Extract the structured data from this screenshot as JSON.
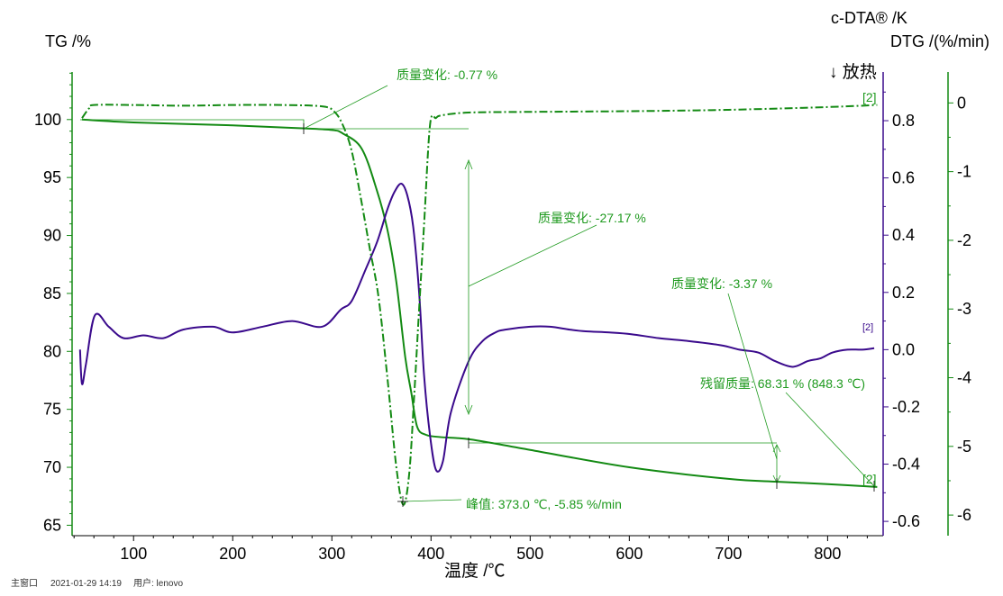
{
  "chart_data": {
    "type": "line",
    "title": "",
    "xlabel": "温度 /℃",
    "xlim": [
      38,
      856
    ],
    "xticks": [
      100,
      200,
      300,
      400,
      500,
      600,
      700,
      800
    ],
    "axes": {
      "tg": {
        "label": "TG /%",
        "ylim": [
          64.1,
          104.1
        ],
        "ticks": [
          65,
          70,
          75,
          80,
          85,
          90,
          95,
          100
        ],
        "color": "#138a13"
      },
      "dta": {
        "label": "c-DTA® /K",
        "ylim": [
          -0.65,
          0.97
        ],
        "ticks": [
          -0.6,
          -0.4,
          -0.2,
          0.0,
          0.2,
          0.4,
          0.6,
          0.8
        ],
        "color": "#3a0a8c"
      },
      "dtg": {
        "label": "DTG /(%/min)",
        "ylim": [
          -6.3,
          0.45
        ],
        "ticks": [
          -6,
          -5,
          -4,
          -3,
          -2,
          -1,
          0
        ],
        "color": "#138a13"
      }
    },
    "exo_label": "↓ 放热",
    "series": [
      {
        "name": "TG",
        "axis": "tg",
        "style": "solid",
        "color": "#138a13",
        "x": [
          48,
          100,
          200,
          270,
          300,
          311,
          330,
          345,
          356,
          365,
          374,
          380,
          386,
          395,
          410,
          440,
          500,
          600,
          700,
          750,
          800,
          850
        ],
        "y": [
          100,
          99.75,
          99.5,
          99.25,
          99.1,
          98.8,
          97.5,
          94,
          90.5,
          86,
          79.5,
          76.5,
          73.5,
          72.8,
          72.6,
          72.4,
          71.5,
          70,
          69,
          68.75,
          68.55,
          68.3
        ]
      },
      {
        "name": "c-DTA",
        "axis": "dta",
        "style": "solid",
        "color": "#3a0a8c",
        "x": [
          46,
          48,
          52,
          61,
          75,
          90,
          110,
          130,
          150,
          180,
          200,
          230,
          260,
          290,
          309,
          320,
          334,
          346,
          356,
          363,
          370,
          376,
          382,
          388,
          393,
          399,
          405,
          412,
          420,
          438,
          452,
          465,
          475,
          500,
          520,
          540,
          556,
          580,
          602,
          630,
          660,
          693,
          711,
          730,
          747,
          765,
          780,
          793,
          805,
          820,
          835,
          847
        ],
        "y": [
          0.0,
          -0.12,
          -0.05,
          0.12,
          0.08,
          0.04,
          0.05,
          0.04,
          0.07,
          0.08,
          0.06,
          0.08,
          0.1,
          0.08,
          0.14,
          0.17,
          0.28,
          0.38,
          0.49,
          0.55,
          0.58,
          0.54,
          0.43,
          0.2,
          -0.09,
          -0.3,
          -0.42,
          -0.39,
          -0.22,
          -0.04,
          0.03,
          0.06,
          0.07,
          0.08,
          0.08,
          0.07,
          0.064,
          0.06,
          0.054,
          0.04,
          0.03,
          0.015,
          0.0,
          -0.01,
          -0.04,
          -0.06,
          -0.04,
          -0.03,
          -0.01,
          0.0,
          0.0,
          0.005
        ]
      },
      {
        "name": "DTG",
        "axis": "dtg",
        "style": "dashdot",
        "color": "#138a13",
        "x": [
          48,
          55,
          60,
          100,
          150,
          200,
          250,
          290,
          302,
          311,
          320,
          329,
          338,
          347,
          356,
          365,
          372,
          378,
          383,
          388,
          393,
          399,
          405,
          411,
          438,
          500,
          600,
          700,
          800,
          850
        ],
        "y": [
          -0.22,
          -0.08,
          -0.03,
          -0.03,
          -0.04,
          -0.03,
          -0.03,
          -0.05,
          -0.12,
          -0.32,
          -0.7,
          -1.37,
          -2.1,
          -2.82,
          -4.0,
          -5.3,
          -5.85,
          -5.4,
          -4.27,
          -3.0,
          -1.77,
          -0.32,
          -0.22,
          -0.18,
          -0.14,
          -0.13,
          -0.12,
          -0.1,
          -0.06,
          -0.03
        ]
      }
    ],
    "annotations": {
      "mass_change_1": "质量变化: -0.77 %",
      "mass_change_2": "质量变化: -27.17 %",
      "mass_change_3": "质量变化: -3.37 %",
      "residual_mass": "残留质量: 68.31 % (848.3 ℃)",
      "peak": "峰值: 373.0 ℃, -5.85 %/min",
      "curve_tag": "[2]"
    }
  },
  "footer": {
    "window": "主窗口",
    "datetime": "2021-01-29 14:19",
    "user": "用户: lenovo"
  }
}
